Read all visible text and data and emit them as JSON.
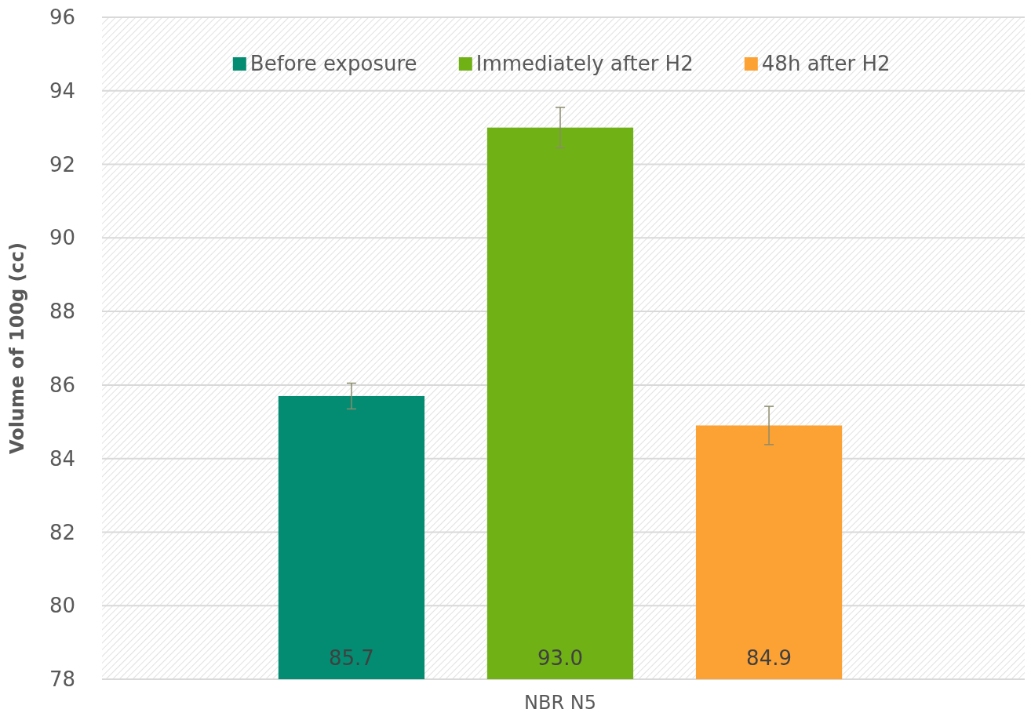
{
  "chart_data": {
    "type": "bar",
    "categories": [
      "NBR N5"
    ],
    "ylabel": "Volume of 100g (cc)",
    "series": [
      {
        "name": "Before exposure",
        "color": "#038c72",
        "values": [
          85.7
        ],
        "errors": [
          0.35
        ],
        "value_labels": [
          "85.7"
        ]
      },
      {
        "name": "Immediately after H2",
        "color": "#70b116",
        "values": [
          93.0
        ],
        "errors": [
          0.55
        ],
        "value_labels": [
          "93.0"
        ]
      },
      {
        "name": "48h after H2",
        "color": "#fca235",
        "values": [
          84.9
        ],
        "errors": [
          0.52
        ],
        "value_labels": [
          "84.9"
        ]
      }
    ],
    "ylim": [
      78,
      96
    ],
    "yticks": [
      78,
      80,
      82,
      84,
      86,
      88,
      90,
      92,
      94,
      96
    ],
    "grid": "y",
    "legend": "top"
  }
}
